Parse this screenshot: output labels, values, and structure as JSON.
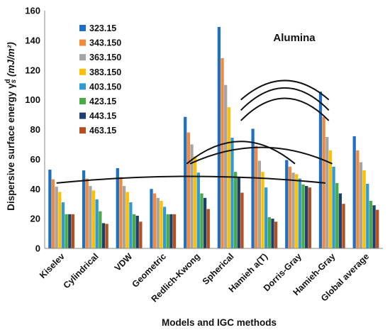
{
  "chart_data": {
    "type": "bar",
    "annotation": "Alumina",
    "xlabel": "Models and IGC methods",
    "ylabel_prefix": "Dispersive surface energy γ",
    "ylabel_sub": "s",
    "ylabel_sup": "d",
    "ylabel_unit": " (mJ/m²)",
    "ylim": [
      0,
      160
    ],
    "yticks": [
      0,
      20,
      40,
      60,
      80,
      100,
      120,
      140,
      160
    ],
    "grid": false,
    "legend_position": "top-left",
    "categories": [
      "Kiselev",
      "Cylindrical",
      "VDW",
      "Geometric",
      "Redlich-Kwong",
      "Spherical",
      "Hamieh a(T)",
      "Dorris-Gray",
      "Hamieh-Gray",
      "Global average"
    ],
    "series": [
      {
        "name": "323.15",
        "color": "#1f6fc5",
        "values": [
          53,
          52.5,
          54,
          40,
          88.5,
          149,
          80.5,
          59.5,
          105.5,
          75.5
        ]
      },
      {
        "name": "343.150",
        "color": "#f08a3c",
        "values": [
          46.5,
          47,
          48,
          37,
          78,
          128,
          69,
          55,
          88.5,
          66
        ]
      },
      {
        "name": "363.150",
        "color": "#a5a5a5",
        "values": [
          41.5,
          42,
          42,
          34,
          70,
          110,
          59,
          51,
          75,
          58
        ]
      },
      {
        "name": "383.150",
        "color": "#ffc000",
        "values": [
          38,
          39,
          38,
          32,
          62,
          95,
          51.5,
          50,
          66,
          52.5
        ]
      },
      {
        "name": "403.150",
        "color": "#2e9bd6",
        "values": [
          31,
          33,
          31,
          28,
          51,
          74.5,
          41,
          47,
          55,
          43.5
        ]
      },
      {
        "name": "423.15",
        "color": "#4aaa44",
        "values": [
          23,
          25,
          23,
          23,
          37,
          51.5,
          21,
          43,
          44,
          32
        ]
      },
      {
        "name": "443.15",
        "color": "#1b3f6e",
        "values": [
          23,
          17,
          22,
          23,
          34,
          48,
          20,
          42,
          37,
          29
        ]
      },
      {
        "name": "463.15",
        "color": "#b5501e",
        "values": [
          23,
          16.5,
          18,
          23,
          26.5,
          37.5,
          18,
          41,
          30,
          26
        ]
      }
    ],
    "arcs": [
      {
        "x1": 0.35,
        "x2": 8.3,
        "y_end": 44,
        "y_peak": 48.5
      },
      {
        "x1": 4.2,
        "x2": 7.4,
        "y_end": 57,
        "y_peak": 72
      },
      {
        "x1": 4.3,
        "x2": 8.5,
        "y_end": 57,
        "y_peak": 68
      },
      {
        "x1": 5.8,
        "x2": 8.4,
        "y_end": 100,
        "y_peak": 113
      },
      {
        "x1": 5.8,
        "x2": 8.4,
        "y_end": 93,
        "y_peak": 108
      },
      {
        "x1": 5.8,
        "x2": 8.4,
        "y_end": 86,
        "y_peak": 101
      }
    ]
  }
}
